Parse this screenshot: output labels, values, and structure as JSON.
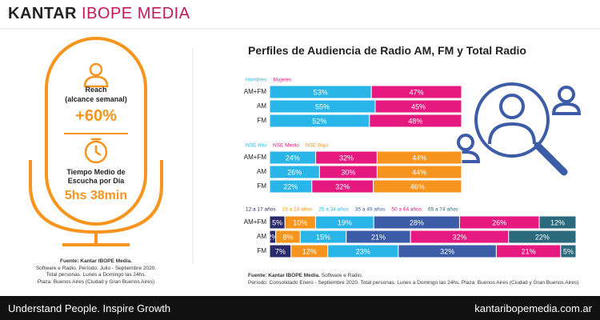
{
  "header": {
    "brand": "KANTAR",
    "brand_accent": "IBOPE MEDIA"
  },
  "title": "Perfiles de Audiencia de Radio AM, FM y Total Radio",
  "left_panel": {
    "reach_label": "Reach",
    "reach_sublabel": "(alcance semanal)",
    "reach_value": "+60%",
    "time_label": "Tiempo Medio de Escucha por Día",
    "time_value": "5hs 38min",
    "source_title": "Fuente: Kantar IBOPE Media.",
    "source_lines": [
      "Software e Radio. Período: Julio - Septiembre 2020.",
      "Total personas. Lunes a Domingo las 24hs.",
      "Plaza: Buenos Aires (Ciudad y Gran Buenos Aires)"
    ]
  },
  "right_source": {
    "title": "Fuente: Kantar IBOPE Media.",
    "first_line": "Software e Radio.",
    "second_line": "Período: Consolidado Enero - Septiembre 2020. Total personas. Lunes a Domingo las 24hs. Plaza: Buenos Aires (Ciudad y Gran Buenos Aires)"
  },
  "footer": {
    "tagline": "Understand People. Inspire Growth",
    "url": "kantaribopemedia.com.ar"
  },
  "chart_data": [
    {
      "type": "bar",
      "orientation": "horizontal",
      "stacked": true,
      "categories": [
        "AM+FM",
        "AM",
        "FM"
      ],
      "xlim": [
        0,
        100
      ],
      "series": [
        {
          "name": "Hombres",
          "color": "#29b5e8",
          "values": [
            53,
            55,
            52
          ],
          "value_labels": [
            "53%",
            "55%",
            "52%"
          ]
        },
        {
          "name": "Mujeres",
          "color": "#e5197f",
          "values": [
            47,
            45,
            48
          ],
          "value_labels": [
            "47%",
            "45%",
            "48%"
          ]
        }
      ]
    },
    {
      "type": "bar",
      "orientation": "horizontal",
      "stacked": true,
      "categories": [
        "AM+FM",
        "AM",
        "FM"
      ],
      "xlim": [
        0,
        100
      ],
      "series": [
        {
          "name": "NSE Alto",
          "color": "#29b5e8",
          "values": [
            24,
            26,
            22
          ],
          "value_labels": [
            "24%",
            "26%",
            "22%"
          ]
        },
        {
          "name": "NSE Medio",
          "color": "#e5197f",
          "values": [
            32,
            30,
            32
          ],
          "value_labels": [
            "32%",
            "30%",
            "32%"
          ]
        },
        {
          "name": "NSE Bajo",
          "color": "#f7941d",
          "values": [
            44,
            44,
            46
          ],
          "value_labels": [
            "44%",
            "44%",
            "46%"
          ]
        }
      ]
    },
    {
      "type": "bar",
      "orientation": "horizontal",
      "stacked": true,
      "categories": [
        "AM+FM",
        "AM",
        "FM"
      ],
      "xlim": [
        0,
        100
      ],
      "series": [
        {
          "name": "12 a 17 años",
          "color": "#2b2a6a",
          "values": [
            5,
            2,
            7
          ],
          "value_labels": [
            "5%",
            "2%",
            "7%"
          ]
        },
        {
          "name": "18 a 24 años",
          "color": "#f7941d",
          "values": [
            10,
            8,
            12
          ],
          "value_labels": [
            "10%",
            "8%",
            "12%"
          ]
        },
        {
          "name": "25 a 34 años",
          "color": "#29b5e8",
          "values": [
            19,
            15,
            23
          ],
          "value_labels": [
            "19%",
            "15%",
            "23%"
          ]
        },
        {
          "name": "35 a 49 años",
          "color": "#3d5ca8",
          "values": [
            28,
            21,
            32
          ],
          "value_labels": [
            "28%",
            "21%",
            "32%"
          ]
        },
        {
          "name": "50 a 64 años",
          "color": "#e5197f",
          "values": [
            26,
            32,
            21
          ],
          "value_labels": [
            "26%",
            "32%",
            "21%"
          ]
        },
        {
          "name": "65 a 74 años",
          "color": "#2a6a7c",
          "values": [
            12,
            22,
            5
          ],
          "value_labels": [
            "12%",
            "22%",
            "5%"
          ]
        }
      ]
    }
  ]
}
